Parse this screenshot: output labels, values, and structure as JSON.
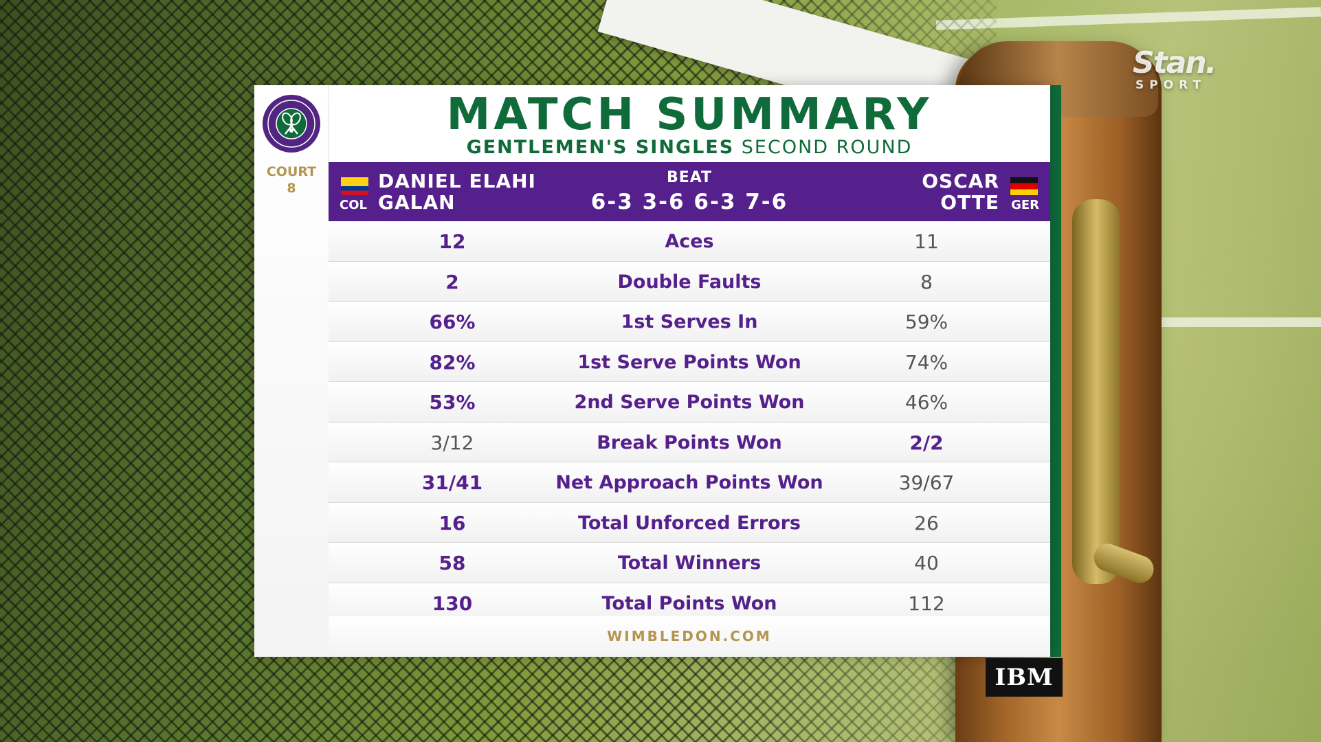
{
  "broadcaster": {
    "name": "Stan.",
    "sub": "SPORT"
  },
  "logo": {
    "icon": "wimbledon-logo-icon"
  },
  "court": {
    "label": "COURT",
    "number": "8"
  },
  "header": {
    "title": "MATCH SUMMARY",
    "event": "GENTLEMEN'S SINGLES",
    "round": "SECOND ROUND"
  },
  "match": {
    "player1": {
      "first": "DANIEL ELAHI",
      "last": "GALAN",
      "country": "COL"
    },
    "player2": {
      "first": "OSCAR",
      "last": "OTTE",
      "country": "GER"
    },
    "result": "BEAT",
    "score": "6-3 3-6 6-3 7-6"
  },
  "stats": [
    {
      "label": "Aces",
      "p1": "12",
      "p2": "11",
      "leader": "p1"
    },
    {
      "label": "Double Faults",
      "p1": "2",
      "p2": "8",
      "leader": "p1"
    },
    {
      "label": "1st Serves In",
      "p1": "66%",
      "p2": "59%",
      "leader": "p1"
    },
    {
      "label": "1st Serve Points Won",
      "p1": "82%",
      "p2": "74%",
      "leader": "p1"
    },
    {
      "label": "2nd Serve Points Won",
      "p1": "53%",
      "p2": "46%",
      "leader": "p1"
    },
    {
      "label": "Break Points Won",
      "p1": "3/12",
      "p2": "2/2",
      "leader": "p2"
    },
    {
      "label": "Net Approach Points Won",
      "p1": "31/41",
      "p2": "39/67",
      "leader": "p1"
    },
    {
      "label": "Total Unforced Errors",
      "p1": "16",
      "p2": "26",
      "leader": "p1"
    },
    {
      "label": "Total Winners",
      "p1": "58",
      "p2": "40",
      "leader": "p1"
    },
    {
      "label": "Total Points Won",
      "p1": "130",
      "p2": "112",
      "leader": "p1"
    }
  ],
  "footer": "WIMBLEDON.COM",
  "sponsor": "IBM",
  "colors": {
    "purple": "#55208c",
    "green": "#0f6b3a",
    "gold": "#b39550"
  }
}
